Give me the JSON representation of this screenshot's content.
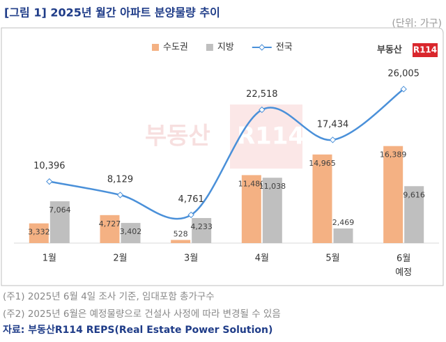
{
  "chart_data": {
    "type": "bar-line",
    "title": "[그림 1] 2025년 월간 아파트 분양물량 추이",
    "subtitle": "(단위: 가구)",
    "categories": [
      "1월",
      "2월",
      "3월",
      "4월",
      "5월",
      "6월\n예정"
    ],
    "ylim": [
      0,
      30000
    ],
    "series": [
      {
        "name": "수도권",
        "type": "bar",
        "color": "#f4b183",
        "values": [
          3332,
          4727,
          528,
          11480,
          14965,
          16389
        ],
        "value_labels": [
          "3,332",
          "4,727",
          "528",
          "11,480",
          "14,965",
          "16,389"
        ]
      },
      {
        "name": "지방",
        "type": "bar",
        "color": "#bfbfbf",
        "values": [
          7064,
          3402,
          4233,
          11038,
          2469,
          9616
        ],
        "value_labels": [
          "7,064",
          "3,402",
          "4,233",
          "11,038",
          "2,469",
          "9,616"
        ]
      },
      {
        "name": "전국",
        "type": "line",
        "color": "#4a90d9",
        "values": [
          10396,
          8129,
          4761,
          22518,
          17434,
          26005
        ],
        "value_labels": [
          "10,396",
          "8,129",
          "4,761",
          "22,518",
          "17,434",
          "26,005"
        ]
      }
    ],
    "legend": "top"
  },
  "logo": {
    "text": "부동산",
    "mark": "R114"
  },
  "notes": [
    "(주1) 2025년 6월 4일 조사 기준, 임대포함 총가구수",
    "(주2) 2025년 6월은 예정물량으로 건설사 사정에 따라 변경될 수 있음"
  ],
  "source": "자료: 부동산R114 REPS(Real Estate Power Solution)"
}
